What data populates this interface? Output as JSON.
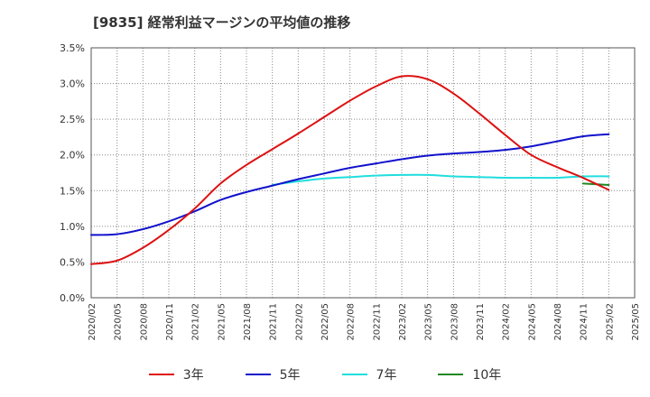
{
  "chart_data": {
    "type": "line",
    "title": "[9835]  経常利益マージンの平均値の推移",
    "xlabel": "",
    "ylabel": "",
    "ylim": [
      0,
      3.5
    ],
    "y_ticks": [
      "0.0%",
      "0.5%",
      "1.0%",
      "1.5%",
      "2.0%",
      "2.5%",
      "3.0%",
      "3.5%"
    ],
    "y_tick_values": [
      0,
      0.5,
      1.0,
      1.5,
      2.0,
      2.5,
      3.0,
      3.5
    ],
    "x_ticks": [
      "2020/02",
      "2020/05",
      "2020/08",
      "2020/11",
      "2021/02",
      "2021/05",
      "2021/08",
      "2021/11",
      "2022/02",
      "2022/05",
      "2022/08",
      "2022/11",
      "2023/02",
      "2023/05",
      "2023/08",
      "2023/11",
      "2024/02",
      "2024/05",
      "2024/08",
      "2024/11",
      "2025/02",
      "2025/05"
    ],
    "grid": true,
    "legend_position": "bottom",
    "series": [
      {
        "name": "3年",
        "color": "#dd1111",
        "x": [
          "2020/02",
          "2020/05",
          "2020/08",
          "2020/11",
          "2021/02",
          "2021/05",
          "2021/08",
          "2021/11",
          "2022/02",
          "2022/05",
          "2022/08",
          "2022/11",
          "2023/02",
          "2023/05",
          "2023/08",
          "2023/11",
          "2024/02",
          "2024/05",
          "2024/08",
          "2024/11",
          "2025/02"
        ],
        "values": [
          0.47,
          0.52,
          0.7,
          0.95,
          1.25,
          1.6,
          1.86,
          2.08,
          2.3,
          2.53,
          2.76,
          2.96,
          3.1,
          3.06,
          2.86,
          2.58,
          2.28,
          2.0,
          1.83,
          1.68,
          1.51
        ]
      },
      {
        "name": "5年",
        "color": "#1111cc",
        "x": [
          "2020/02",
          "2020/05",
          "2020/08",
          "2020/11",
          "2021/02",
          "2021/05",
          "2021/08",
          "2021/11",
          "2022/02",
          "2022/05",
          "2022/08",
          "2022/11",
          "2023/02",
          "2023/05",
          "2023/08",
          "2023/11",
          "2024/02",
          "2024/05",
          "2024/08",
          "2024/11",
          "2025/02"
        ],
        "values": [
          0.88,
          0.89,
          0.96,
          1.07,
          1.21,
          1.37,
          1.48,
          1.57,
          1.66,
          1.74,
          1.82,
          1.88,
          1.94,
          1.99,
          2.02,
          2.04,
          2.07,
          2.12,
          2.19,
          2.26,
          2.29
        ]
      },
      {
        "name": "7年",
        "color": "#22dddd",
        "x": [
          "2021/11",
          "2022/02",
          "2022/05",
          "2022/08",
          "2022/11",
          "2023/02",
          "2023/05",
          "2023/08",
          "2023/11",
          "2024/02",
          "2024/05",
          "2024/08",
          "2024/11",
          "2025/02"
        ],
        "values": [
          1.58,
          1.63,
          1.67,
          1.69,
          1.71,
          1.72,
          1.72,
          1.7,
          1.69,
          1.68,
          1.68,
          1.68,
          1.7,
          1.7
        ]
      },
      {
        "name": "10年",
        "color": "#228822",
        "x": [
          "2024/11",
          "2025/02"
        ],
        "values": [
          1.6,
          1.58
        ]
      }
    ]
  }
}
